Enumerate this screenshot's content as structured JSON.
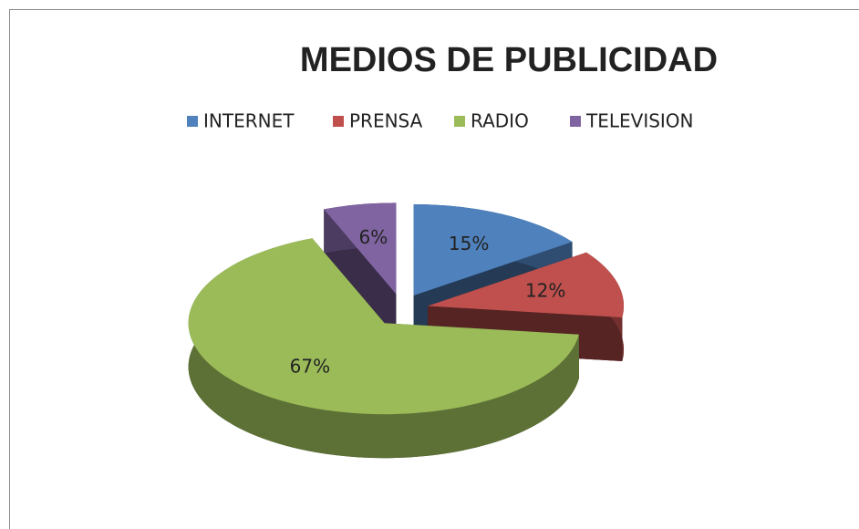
{
  "chart_data": {
    "type": "pie",
    "title": "MEDIOS DE PUBLICIDAD",
    "categories": [
      "INTERNET",
      "PRENSA",
      "RADIO",
      "TELEVISION"
    ],
    "values": [
      15,
      12,
      67,
      6
    ],
    "value_labels": [
      "15%",
      "12%",
      "67%",
      "6%"
    ],
    "colors": [
      "#4f81bd",
      "#c0504d",
      "#9bbb59",
      "#8064a2"
    ],
    "legend": "top"
  }
}
